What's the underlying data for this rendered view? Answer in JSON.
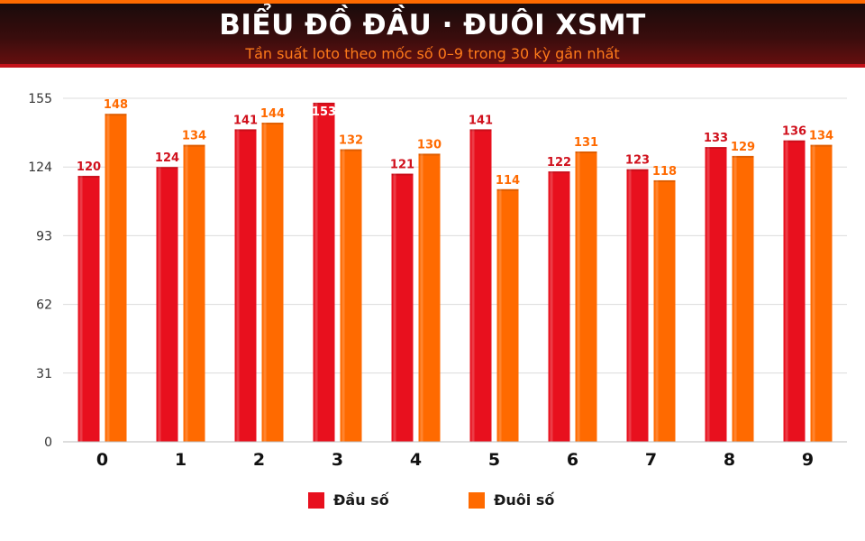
{
  "header": {
    "title": "BIỂU ĐỒ ĐẦU · ĐUÔI XSMT",
    "subtitle": "Tần suất loto theo mốc số 0–9 trong 30 kỳ gần nhất"
  },
  "colors": {
    "dau": "#e8101e",
    "duoi": "#ff6a00",
    "dau_label": "#d0101c",
    "duoi_label": "#ff6a00",
    "grid": "#dcdcdc",
    "axis_text": "#333333"
  },
  "chart_data": {
    "type": "bar",
    "categories": [
      "0",
      "1",
      "2",
      "3",
      "4",
      "5",
      "6",
      "7",
      "8",
      "9"
    ],
    "series": [
      {
        "name": "Đầu số",
        "values": [
          120,
          124,
          141,
          153,
          121,
          141,
          122,
          123,
          133,
          136
        ]
      },
      {
        "name": "Đuôi số",
        "values": [
          148,
          134,
          144,
          132,
          130,
          114,
          131,
          118,
          129,
          134
        ]
      }
    ],
    "yticks": [
      0,
      31,
      62,
      93,
      124,
      155
    ],
    "ylim": [
      0,
      155
    ],
    "grid": true,
    "legend_position": "bottom-center"
  }
}
